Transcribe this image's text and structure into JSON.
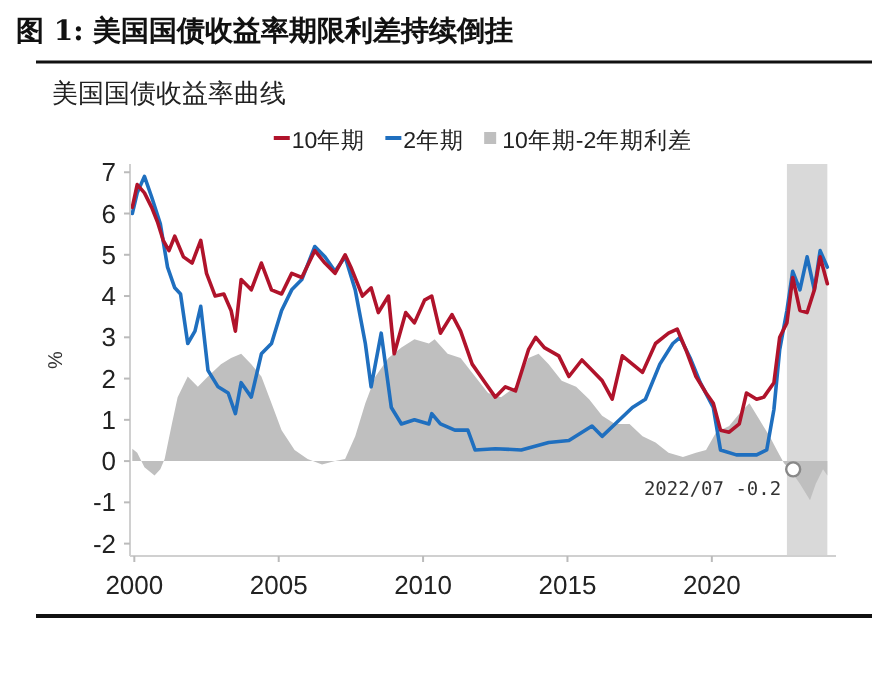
{
  "chart_data": {
    "type": "line",
    "title": "图 1: 美国国债收益率期限利差持续倒挂",
    "subtitle": "美国国债收益率曲线",
    "ylabel": "%",
    "legend": "top",
    "xlim": [
      1999.85,
      2024.3
    ],
    "xticks": [
      2000,
      2005,
      2010,
      2015,
      2020
    ],
    "ylim": [
      -2.3,
      7.2
    ],
    "yticks": [
      -2,
      -1,
      0,
      1,
      2,
      3,
      4,
      5,
      6,
      7
    ],
    "bands": [
      {
        "axis": "x",
        "from": 2022.6,
        "to": 2024.0,
        "color": "#d9d9d9"
      }
    ],
    "annotations": [
      {
        "text": "2022/07 -0.2",
        "x": 2022.54,
        "y": -0.2
      }
    ],
    "series": [
      {
        "name": "10年期",
        "color": "#b0132b",
        "x": [
          1999.93,
          2000.1,
          2000.35,
          2000.6,
          2000.8,
          2001.0,
          2001.2,
          2001.4,
          2001.7,
          2002.0,
          2002.3,
          2002.5,
          2002.8,
          2003.1,
          2003.35,
          2003.5,
          2003.7,
          2004.05,
          2004.4,
          2004.75,
          2005.1,
          2005.45,
          2005.8,
          2006.25,
          2006.6,
          2006.95,
          2007.3,
          2007.5,
          2007.9,
          2008.2,
          2008.45,
          2008.8,
          2009.0,
          2009.4,
          2009.7,
          2010.05,
          2010.3,
          2010.6,
          2011.0,
          2011.3,
          2011.7,
          2012.15,
          2012.5,
          2012.85,
          2013.2,
          2013.65,
          2013.9,
          2014.2,
          2014.7,
          2015.05,
          2015.5,
          2015.85,
          2016.2,
          2016.55,
          2016.9,
          2017.25,
          2017.6,
          2018.05,
          2018.5,
          2018.8,
          2019.1,
          2019.45,
          2019.8,
          2020.05,
          2020.3,
          2020.6,
          2020.95,
          2021.2,
          2021.55,
          2021.8,
          2022.15,
          2022.35,
          2022.6,
          2022.8,
          2023.05,
          2023.3,
          2023.55,
          2023.75,
          2024.0
        ],
        "values": [
          6.15,
          6.7,
          6.5,
          6.15,
          5.8,
          5.35,
          5.1,
          5.45,
          4.95,
          4.8,
          5.35,
          4.55,
          4.0,
          4.05,
          3.65,
          3.15,
          4.4,
          4.15,
          4.8,
          4.15,
          4.05,
          4.55,
          4.45,
          5.1,
          4.8,
          4.55,
          5.0,
          4.7,
          4.0,
          4.2,
          3.6,
          4.0,
          2.6,
          3.6,
          3.35,
          3.9,
          4.0,
          3.1,
          3.55,
          3.15,
          2.35,
          1.9,
          1.55,
          1.8,
          1.7,
          2.7,
          3.0,
          2.75,
          2.55,
          2.05,
          2.45,
          2.2,
          1.95,
          1.5,
          2.55,
          2.35,
          2.15,
          2.85,
          3.1,
          3.2,
          2.7,
          2.05,
          1.65,
          1.4,
          0.75,
          0.7,
          0.9,
          1.65,
          1.5,
          1.55,
          1.9,
          3.0,
          3.35,
          4.45,
          3.65,
          3.6,
          4.15,
          4.95,
          4.3
        ]
      },
      {
        "name": "2年期",
        "color": "#1f6fbf",
        "x": [
          1999.93,
          2000.1,
          2000.35,
          2000.6,
          2000.9,
          2001.15,
          2001.4,
          2001.6,
          2001.85,
          2002.1,
          2002.3,
          2002.55,
          2002.9,
          2003.25,
          2003.5,
          2003.7,
          2004.05,
          2004.4,
          2004.75,
          2005.1,
          2005.45,
          2005.8,
          2006.25,
          2006.6,
          2006.95,
          2007.3,
          2007.65,
          2008.0,
          2008.2,
          2008.55,
          2008.9,
          2009.25,
          2009.7,
          2010.2,
          2010.3,
          2010.6,
          2011.1,
          2011.55,
          2011.8,
          2012.5,
          2013.4,
          2014.35,
          2015.05,
          2015.85,
          2016.2,
          2016.65,
          2017.25,
          2017.7,
          2018.2,
          2018.65,
          2018.9,
          2019.25,
          2019.6,
          2020.05,
          2020.3,
          2020.85,
          2021.55,
          2021.9,
          2022.15,
          2022.35,
          2022.6,
          2022.8,
          2023.05,
          2023.3,
          2023.55,
          2023.75,
          2024.0
        ],
        "values": [
          6.0,
          6.5,
          6.9,
          6.4,
          5.75,
          4.7,
          4.2,
          4.05,
          2.85,
          3.15,
          3.75,
          2.2,
          1.8,
          1.65,
          1.15,
          1.9,
          1.55,
          2.6,
          2.85,
          3.65,
          4.15,
          4.4,
          5.2,
          4.95,
          4.6,
          4.95,
          4.15,
          2.85,
          1.8,
          3.1,
          1.3,
          0.9,
          1.0,
          0.9,
          1.15,
          0.9,
          0.75,
          0.75,
          0.27,
          0.3,
          0.27,
          0.45,
          0.5,
          0.85,
          0.6,
          0.9,
          1.3,
          1.5,
          2.35,
          2.85,
          3.0,
          2.5,
          1.9,
          1.3,
          0.27,
          0.15,
          0.15,
          0.27,
          1.25,
          2.7,
          3.65,
          4.6,
          4.15,
          4.95,
          4.15,
          5.1,
          4.7
        ]
      },
      {
        "name": "10年期-2年期利差",
        "type": "area",
        "color": "#bfbfbf",
        "x": [
          1999.93,
          2000.1,
          2000.35,
          2000.7,
          2000.9,
          2001.05,
          2001.3,
          2001.5,
          2001.85,
          2002.2,
          2002.55,
          2003.0,
          2003.35,
          2003.7,
          2004.05,
          2004.4,
          2004.75,
          2005.1,
          2005.55,
          2006.0,
          2006.5,
          2006.95,
          2007.3,
          2007.65,
          2008.0,
          2008.35,
          2008.8,
          2009.25,
          2009.7,
          2010.2,
          2010.4,
          2010.85,
          2011.3,
          2011.8,
          2012.25,
          2012.7,
          2013.2,
          2013.65,
          2014.0,
          2014.35,
          2014.8,
          2015.3,
          2015.75,
          2016.2,
          2016.65,
          2017.15,
          2017.6,
          2018.05,
          2018.5,
          2019.0,
          2019.45,
          2019.8,
          2020.15,
          2020.6,
          2020.95,
          2021.3,
          2021.65,
          2022.0,
          2022.25,
          2022.5,
          2022.7,
          2023.05,
          2023.4,
          2023.6,
          2023.85,
          2024.0
        ],
        "values": [
          0.3,
          0.2,
          -0.15,
          -0.35,
          -0.2,
          0.05,
          0.9,
          1.55,
          2.05,
          1.8,
          2.05,
          2.35,
          2.5,
          2.6,
          2.35,
          2.05,
          1.4,
          0.75,
          0.27,
          0.05,
          -0.08,
          0.0,
          0.05,
          0.6,
          1.4,
          2.05,
          2.5,
          2.75,
          2.95,
          2.85,
          2.95,
          2.6,
          2.5,
          2.05,
          1.65,
          1.55,
          1.8,
          2.5,
          2.6,
          2.35,
          1.95,
          1.8,
          1.5,
          1.1,
          0.9,
          0.9,
          0.6,
          0.45,
          0.2,
          0.1,
          0.2,
          0.27,
          0.7,
          0.85,
          1.15,
          1.4,
          1.0,
          0.6,
          0.27,
          -0.05,
          -0.2,
          -0.55,
          -0.95,
          -0.55,
          -0.2,
          -0.35
        ]
      }
    ]
  }
}
